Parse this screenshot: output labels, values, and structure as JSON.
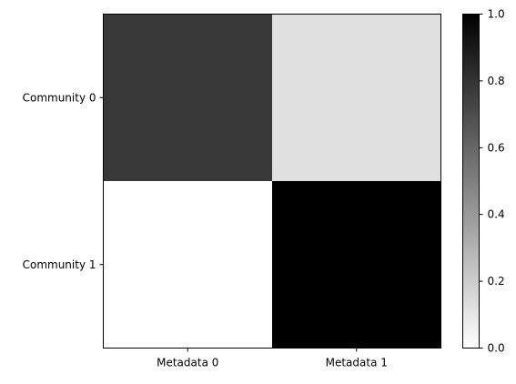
{
  "chart_data": {
    "type": "heatmap",
    "title": "",
    "xlabel": "",
    "ylabel": "",
    "x_categories": [
      "Metadata 0",
      "Metadata 1"
    ],
    "y_categories": [
      "Community 0",
      "Community 1"
    ],
    "values": [
      [
        0.78,
        0.12
      ],
      [
        0.0,
        1.0
      ]
    ],
    "colormap": "Greys",
    "colorbar": {
      "min": 0.0,
      "max": 1.0,
      "ticks": [
        "0.0",
        "0.2",
        "0.4",
        "0.6",
        "0.8",
        "1.0"
      ],
      "tick_values": [
        0.0,
        0.2,
        0.4,
        0.6,
        0.8,
        1.0
      ],
      "placement": "right"
    },
    "grid": false
  }
}
